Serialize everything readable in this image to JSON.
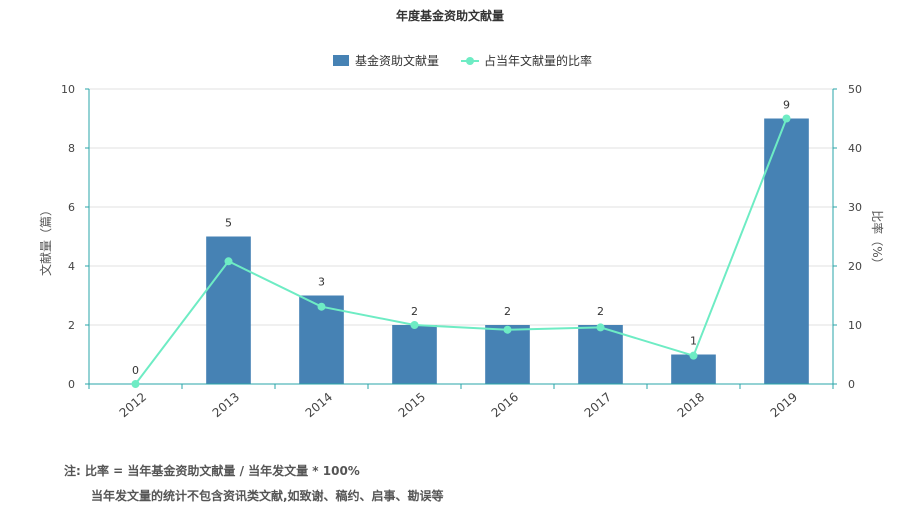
{
  "chart_data": {
    "type": "bar",
    "title": "年度基金资助文献量",
    "categories": [
      "2012",
      "2013",
      "2014",
      "2015",
      "2016",
      "2017",
      "2018",
      "2019"
    ],
    "series": [
      {
        "name": "基金资助文献量",
        "type": "bar",
        "axis": "left",
        "values": [
          0,
          5,
          3,
          2,
          2,
          2,
          1,
          9
        ],
        "color": "#4682b4"
      },
      {
        "name": "占当年文献量的比率",
        "type": "line",
        "axis": "right",
        "values": [
          0,
          20.8,
          13.1,
          10.0,
          9.2,
          9.6,
          4.8,
          45.0
        ],
        "color": "#6eecc4"
      }
    ],
    "ylabel": "文献量（篇）",
    "y2label": "比率（%）",
    "ylim": [
      0,
      10
    ],
    "y2lim": [
      0,
      50
    ],
    "yticks": [
      0,
      2,
      4,
      6,
      8,
      10
    ],
    "y2ticks": [
      0,
      10,
      20,
      30,
      40,
      50
    ],
    "grid": true,
    "legend_position": "top-center",
    "axis_color": "#2aa6a8"
  },
  "notes": {
    "line1": "注:  比率 = 当年基金资助文献量 / 当年发文量 * 100%",
    "line2": "当年发文量的统计不包含资讯类文献,如致谢、稿约、启事、勘误等"
  }
}
